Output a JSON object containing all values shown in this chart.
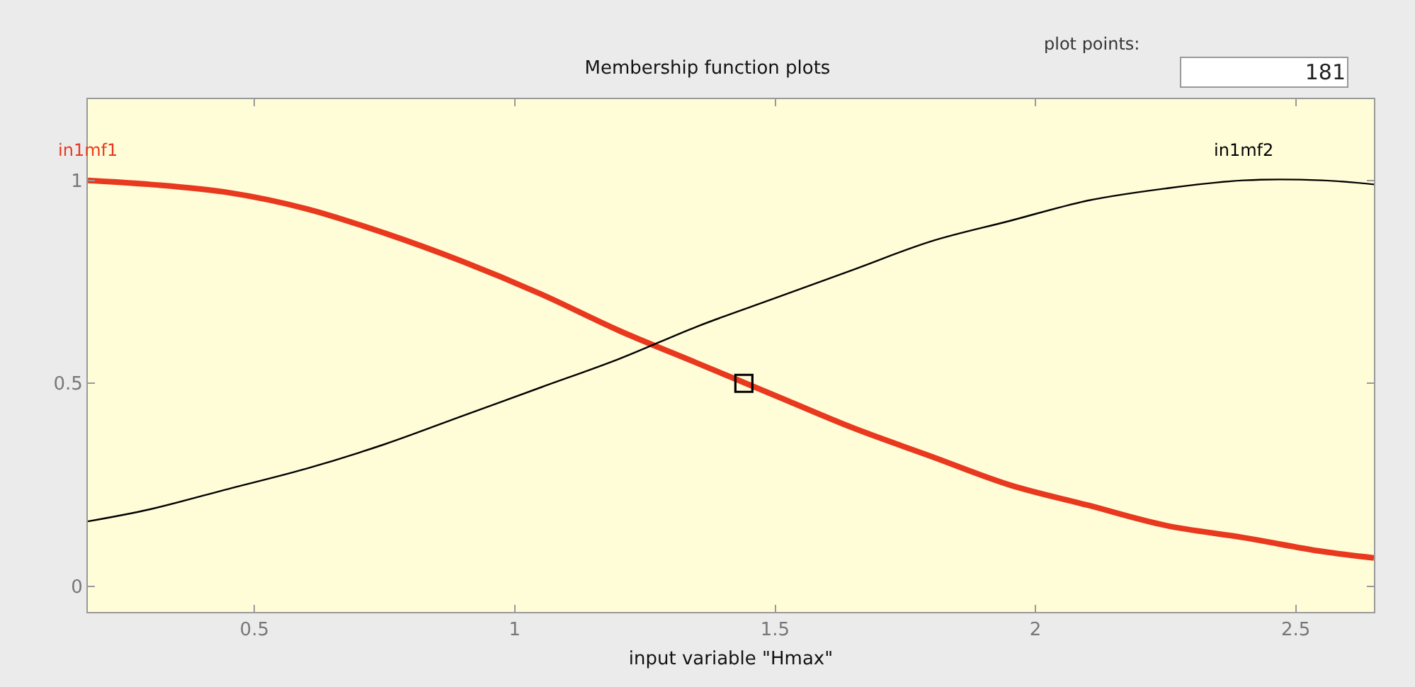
{
  "chart_data": {
    "type": "line",
    "title": "Membership function plots",
    "xlabel": "input variable \"Hmax\"",
    "x": [
      0.18,
      0.3,
      0.45,
      0.6,
      0.75,
      0.9,
      1.05,
      1.2,
      1.35,
      1.5,
      1.65,
      1.8,
      1.95,
      2.1,
      2.25,
      2.4,
      2.55,
      2.65
    ],
    "series": [
      {
        "name": "in1mf1",
        "color": "#e8391e",
        "values": [
          1.0,
          0.99,
          0.97,
          0.93,
          0.87,
          0.8,
          0.72,
          0.63,
          0.55,
          0.47,
          0.39,
          0.32,
          0.25,
          0.2,
          0.15,
          0.12,
          0.086,
          0.07
        ]
      },
      {
        "name": "in1mf2",
        "color": "#000000",
        "values": [
          0.16,
          0.19,
          0.24,
          0.29,
          0.35,
          0.42,
          0.49,
          0.56,
          0.64,
          0.71,
          0.78,
          0.85,
          0.9,
          0.95,
          0.98,
          1.0,
          1.0,
          0.99
        ]
      },
      {
        "type": "scatter",
        "marker": "square",
        "color": "#000000",
        "x": [
          1.44
        ],
        "values": [
          0.5
        ]
      }
    ],
    "xlim": [
      0.18,
      2.65
    ],
    "xticks": [
      0.5,
      1,
      1.5,
      2,
      2.5
    ],
    "ylim": [
      -0.063,
      1.2
    ],
    "yticks": [
      0,
      0.5,
      1
    ],
    "grid": false,
    "annotations": [
      "plot points:",
      "181"
    ]
  }
}
